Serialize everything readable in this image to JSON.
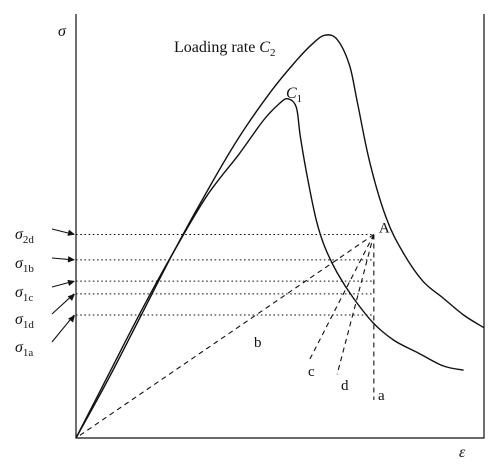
{
  "chart_data": {
    "type": "line",
    "title": "",
    "axes": {
      "x_label": "ε",
      "y_label": "σ",
      "x_range": [
        0,
        100
      ],
      "y_range": [
        0,
        100
      ],
      "ticks": "none",
      "grid": false
    },
    "series": [
      {
        "name": "Loading rate C2",
        "label_parts": {
          "main": "Loading rate ",
          "symbol": "C",
          "sub": "2"
        },
        "style": "solid",
        "points": [
          [
            0,
            0
          ],
          [
            8,
            14
          ],
          [
            16,
            29
          ],
          [
            24,
            44
          ],
          [
            32,
            58
          ],
          [
            40,
            71
          ],
          [
            48,
            82
          ],
          [
            54,
            89
          ],
          [
            58,
            93
          ],
          [
            61,
            95
          ],
          [
            64,
            94
          ],
          [
            67,
            88
          ],
          [
            69,
            79
          ],
          [
            72,
            65
          ],
          [
            76,
            52
          ],
          [
            80,
            44
          ],
          [
            85,
            37
          ],
          [
            90,
            33
          ],
          [
            95,
            29
          ],
          [
            100,
            26
          ]
        ]
      },
      {
        "name": "C1",
        "label_parts": {
          "symbol": "C",
          "sub": "1"
        },
        "style": "solid",
        "points": [
          [
            0,
            0
          ],
          [
            8,
            15
          ],
          [
            16,
            30
          ],
          [
            24,
            44
          ],
          [
            32,
            57
          ],
          [
            40,
            67
          ],
          [
            46,
            75
          ],
          [
            50,
            79
          ],
          [
            52,
            80
          ],
          [
            54,
            78
          ],
          [
            55,
            71
          ],
          [
            57,
            60
          ],
          [
            59,
            51
          ],
          [
            61,
            45
          ],
          [
            64,
            39
          ],
          [
            68,
            33
          ],
          [
            73,
            27
          ],
          [
            78,
            23
          ],
          [
            84,
            20
          ],
          [
            90,
            17
          ],
          [
            95,
            16
          ]
        ]
      }
    ],
    "stress_levels": [
      {
        "label_main": "σ",
        "label_sub": "2d",
        "value": 48
      },
      {
        "label_main": "σ",
        "label_sub": "1b",
        "value": 42
      },
      {
        "label_main": "σ",
        "label_sub": "1c",
        "value": 37
      },
      {
        "label_main": "σ",
        "label_sub": "1d",
        "value": 34
      },
      {
        "label_main": "σ",
        "label_sub": "1a",
        "value": 29
      }
    ],
    "point_A": {
      "label": "A",
      "x": 73,
      "y": 48
    },
    "lines_from_A": [
      {
        "label": "a",
        "to": [
          73,
          9
        ]
      },
      {
        "label": "b",
        "to": [
          0,
          0
        ]
      },
      {
        "label": "c",
        "to": [
          57,
          18
        ]
      },
      {
        "label": "d",
        "to": [
          64,
          15
        ]
      }
    ]
  }
}
